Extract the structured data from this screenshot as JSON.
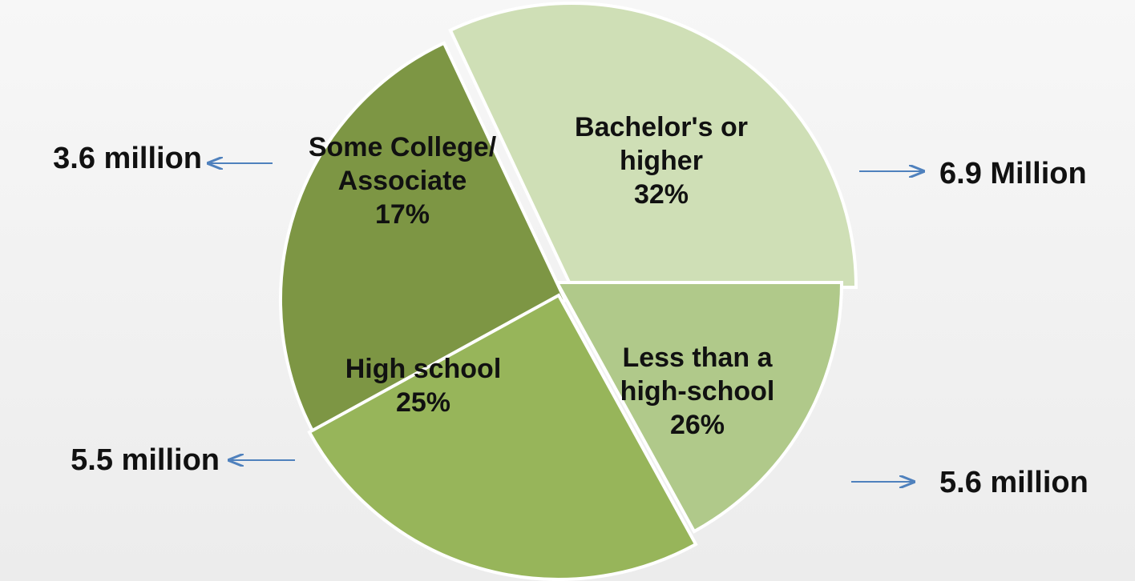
{
  "chart_data": {
    "type": "pie",
    "title": "",
    "slices": [
      {
        "name": "Bachelor's or higher",
        "label_lines": [
          "Bachelor's or",
          "higher",
          "32%"
        ],
        "value": 32,
        "count_label": "6.9 Million",
        "color": "#cfdfb6"
      },
      {
        "name": "Less than a high-school",
        "label_lines": [
          "Less than a",
          "high-school",
          "26%"
        ],
        "value": 26,
        "count_label": "5.6 million",
        "color": "#7d9644"
      },
      {
        "name": "High school",
        "label_lines": [
          "High school",
          "25%"
        ],
        "value": 25,
        "count_label": "5.5 million",
        "color": "#97b55a"
      },
      {
        "name": "Some College/ Associate",
        "label_lines": [
          "Some College/",
          "Associate",
          "17%"
        ],
        "value": 17,
        "count_label": "3.6 million",
        "color": "#b0c98a"
      }
    ],
    "arrow_color": "#4f81bd"
  }
}
